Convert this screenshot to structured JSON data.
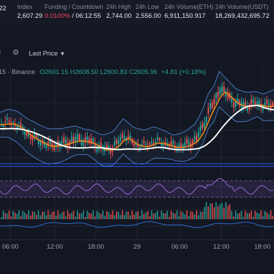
{
  "stats": [
    {
      "label": "",
      "value": ".22"
    },
    {
      "label": "Index",
      "value": "2,607.29"
    },
    {
      "label": "Funding / Countdown",
      "rate": "0.0100%",
      "countdown": " / 06:12:55"
    },
    {
      "label": "24h High",
      "value": "2,744.00"
    },
    {
      "label": "24h Low",
      "value": "2,556.00"
    },
    {
      "label": "24h Volume(ETH)",
      "value": "6,911,150.917"
    },
    {
      "label": "24h Volume(USDT)",
      "value": "18,269,432,695.72"
    }
  ],
  "toolbar": {
    "price_type": "Last Price"
  },
  "legend": {
    "symbol": "15 · Binance",
    "ohlc": "O2601.15 H2608.50 L2600.83 C2605.96",
    "change": "+4.81 (+0.18%)"
  },
  "icons": [
    "indicator-icon",
    "settings-icon",
    "chevron-down-icon"
  ],
  "colors": {
    "up": "#26a69a",
    "down": "#ef5350",
    "ma_fast": "#f0891e",
    "ma_slow": "#ffffff",
    "band": "#4a7bc4",
    "rsi": "#9b6bd4",
    "background": "#131722"
  },
  "chart_data": {
    "type": "candlestick",
    "x_ticks": [
      "06:00",
      "12:00",
      "18:00",
      "29",
      "06:00",
      "12:00",
      "18:00"
    ],
    "ohlc_last": {
      "open": 2601.15,
      "high": 2608.5,
      "low": 2600.83,
      "close": 2605.96,
      "change": 4.81,
      "change_pct": 0.18
    },
    "exchange": "Binance"
  }
}
